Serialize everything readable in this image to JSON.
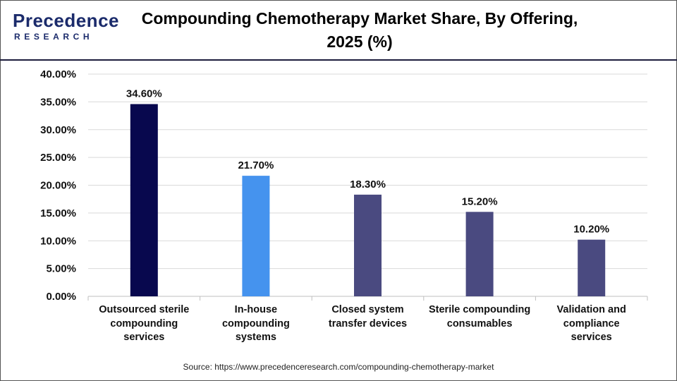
{
  "header": {
    "title": "Compounding Chemotherapy Market Share, By Offering, 2025 (%)",
    "logo_word": "recedence",
    "logo_initial": "P",
    "logo_sub": "RESEARCH"
  },
  "source": "Source: https://www.precedenceresearch.com/compounding-chemotherapy-market",
  "colors": {
    "outsourced": "#08084e",
    "inhouse": "#4593ee",
    "others": "#4a4a80",
    "grid": "#d9d9d9",
    "axis": "#bfbfbf"
  },
  "chart_data": {
    "type": "bar",
    "title": "Compounding Chemotherapy Market Share, By Offering, 2025 (%)",
    "categories": [
      "Outsourced sterile compounding services",
      "In-house compounding systems",
      "Closed system transfer devices",
      "Sterile compounding consumables",
      "Validation and compliance services"
    ],
    "category_lines": [
      [
        "Outsourced sterile",
        "compounding",
        "services"
      ],
      [
        "In-house",
        "compounding",
        "systems"
      ],
      [
        "Closed system",
        "transfer devices"
      ],
      [
        "Sterile compounding",
        "consumables"
      ],
      [
        "Validation and",
        "compliance",
        "services"
      ]
    ],
    "values": [
      34.6,
      21.7,
      18.3,
      15.2,
      10.2
    ],
    "value_labels": [
      "34.60%",
      "21.70%",
      "18.30%",
      "15.20%",
      "10.20%"
    ],
    "bar_colors": [
      "#08084e",
      "#4593ee",
      "#4a4a80",
      "#4a4a80",
      "#4a4a80"
    ],
    "yticks": [
      0,
      5,
      10,
      15,
      20,
      25,
      30,
      35,
      40
    ],
    "ytick_labels": [
      "0.00%",
      "5.00%",
      "10.00%",
      "15.00%",
      "20.00%",
      "25.00%",
      "30.00%",
      "35.00%",
      "40.00%"
    ],
    "ylim": [
      0,
      40
    ],
    "grid": true,
    "legend": "none",
    "xlabel": "",
    "ylabel": ""
  }
}
